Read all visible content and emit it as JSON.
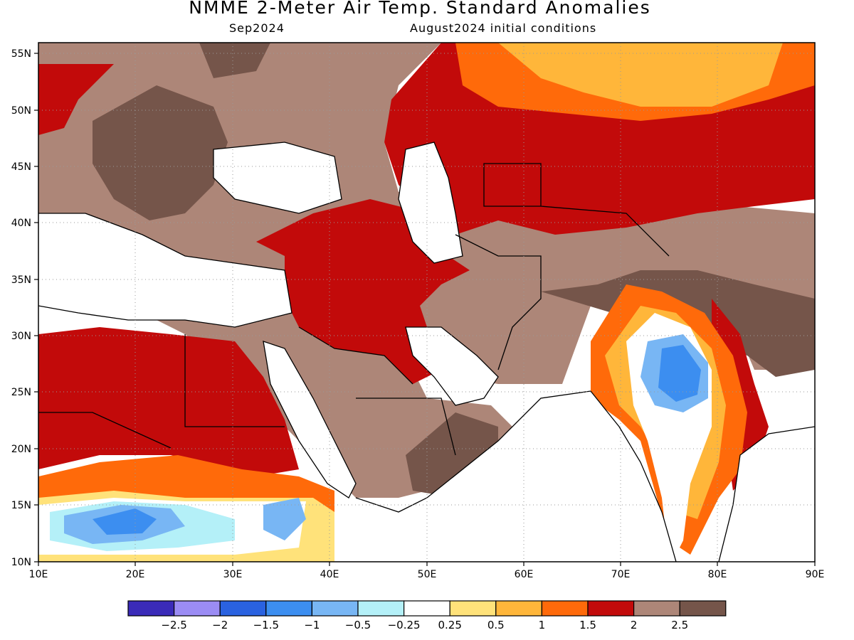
{
  "title": "NMME 2-Meter Air Temp. Standard Anomalies",
  "subtitle_left": "Sep2024",
  "subtitle_right": "August2024 initial conditions",
  "lat_labels": [
    "55N",
    "50N",
    "45N",
    "40N",
    "35N",
    "30N",
    "25N",
    "20N",
    "15N",
    "10N"
  ],
  "lon_labels": [
    "10E",
    "20E",
    "30E",
    "40E",
    "50E",
    "60E",
    "70E",
    "80E",
    "90E"
  ],
  "colorbar": {
    "colors": [
      "#3a2bb8",
      "#9b8cf4",
      "#2a62e0",
      "#3c8ef0",
      "#78b6f4",
      "#b4f0f8",
      "#ffffff",
      "#ffe27a",
      "#ffb63a",
      "#ff6a0a",
      "#c20a0a",
      "#ad8678",
      "#75554a"
    ],
    "labels": [
      "-2.5",
      "-2",
      "-1.5",
      "-1",
      "-0.5",
      "-0.25",
      "0.25",
      "0.5",
      "1",
      "1.5",
      "2",
      "2.5"
    ]
  },
  "palette": {
    "brown_dark": "#75554a",
    "brown": "#ad8678",
    "red": "#c20a0a",
    "orange": "#ff6a0a",
    "light_orange": "#ffb63a",
    "yellow": "#ffe27a",
    "pale_cyan": "#b4f0f8",
    "light_blue": "#78b6f4",
    "blue": "#3c8ef0"
  }
}
